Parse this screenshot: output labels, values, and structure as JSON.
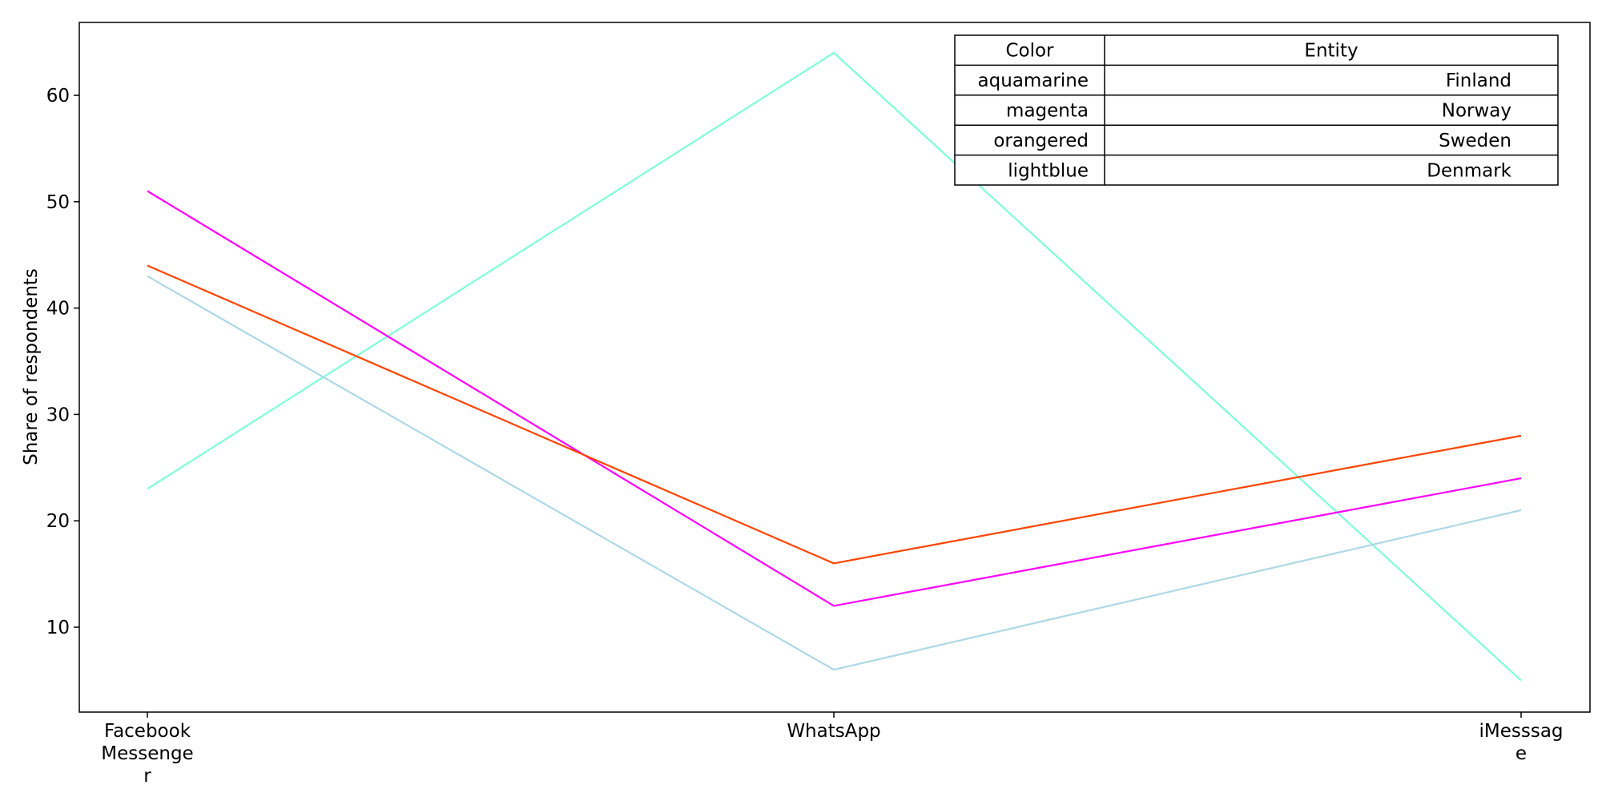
{
  "chart_data": {
    "type": "line",
    "ylabel": "Share of respondents",
    "categories": [
      [
        "Facebook",
        "Messenge",
        "r"
      ],
      [
        "WhatsApp"
      ],
      [
        "iMesssag",
        "e"
      ]
    ],
    "y_ticks": [
      10,
      20,
      30,
      40,
      50,
      60
    ],
    "ylim": [
      2,
      67
    ],
    "grid": false,
    "legend_placement": "top-right",
    "series": [
      {
        "name": "Finland",
        "color_name": "aquamarine",
        "color": "#7fffd4",
        "values": [
          23,
          64,
          5
        ]
      },
      {
        "name": "Norway",
        "color_name": "magenta",
        "color": "#ff00ff",
        "values": [
          51,
          12,
          24
        ]
      },
      {
        "name": "Sweden",
        "color_name": "orangered",
        "color": "#ff4500",
        "values": [
          44,
          16,
          28
        ]
      },
      {
        "name": "Denmark",
        "color_name": "lightblue",
        "color": "#add8e6",
        "values": [
          43,
          6,
          21
        ]
      }
    ],
    "legend_table": {
      "headers": [
        "Color",
        "Entity"
      ],
      "rows": [
        [
          "aquamarine",
          "Finland"
        ],
        [
          "magenta",
          "Norway"
        ],
        [
          "orangered",
          "Sweden"
        ],
        [
          "lightblue",
          "Denmark"
        ]
      ]
    }
  }
}
